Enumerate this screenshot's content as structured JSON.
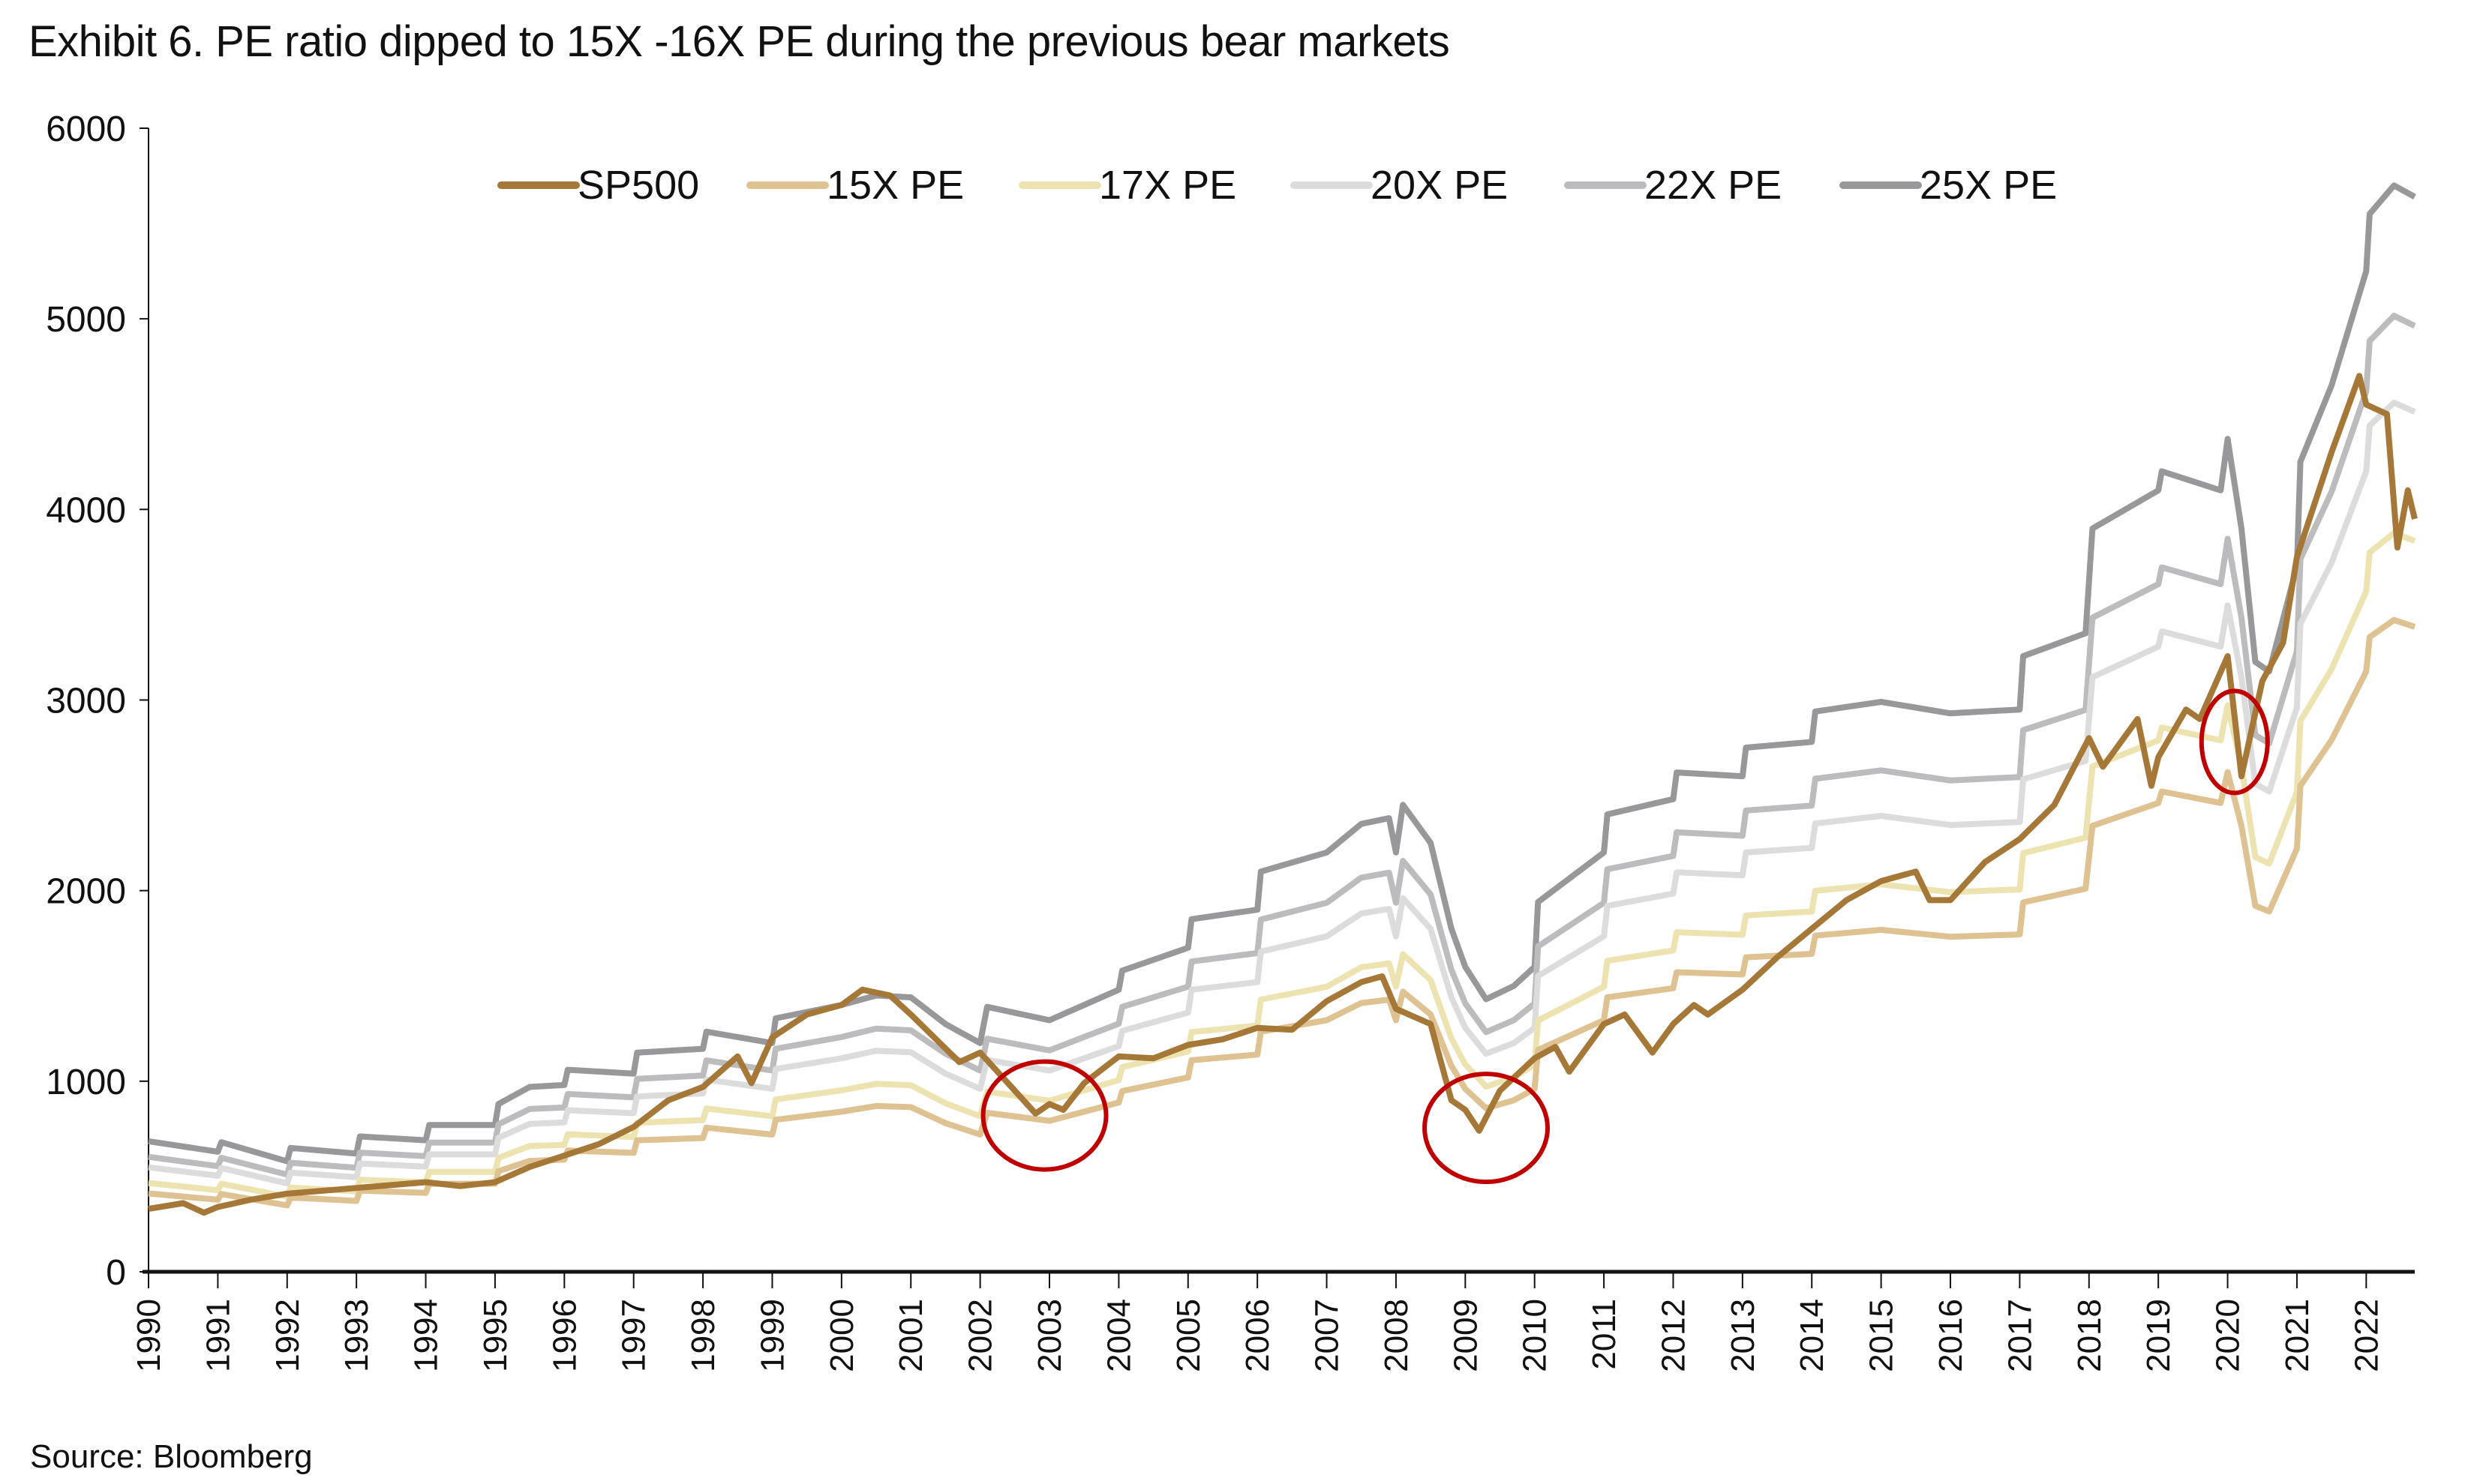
{
  "title": "Exhibit 6. PE ratio dipped to 15X -16X PE during the previous bear markets",
  "source": "Source: Bloomberg",
  "chart_data": {
    "type": "line",
    "title": "Exhibit 6. PE ratio dipped to 15X -16X PE during the previous bear markets",
    "xlabel": "",
    "ylabel": "",
    "xlim": [
      1990,
      2022.7
    ],
    "ylim": [
      0,
      6000
    ],
    "yticks": [
      0,
      1000,
      2000,
      3000,
      4000,
      5000,
      6000
    ],
    "xticks": [
      "1990",
      "1991",
      "1992",
      "1993",
      "1994",
      "1995",
      "1996",
      "1997",
      "1998",
      "1999",
      "2000",
      "2001",
      "2002",
      "2003",
      "2004",
      "2005",
      "2006",
      "2007",
      "2008",
      "2009",
      "2010",
      "2011",
      "2012",
      "2013",
      "2014",
      "2015",
      "2016",
      "2017",
      "2018",
      "2019",
      "2020",
      "2021",
      "2022"
    ],
    "grid": false,
    "legend_position": "top",
    "series": [
      {
        "name": "SP500",
        "color": "#a57838",
        "x": [
          1990.0,
          1990.5,
          1990.8,
          1991.0,
          1991.5,
          1992.0,
          1993.0,
          1994.0,
          1994.5,
          1995.0,
          1995.5,
          1996.0,
          1996.5,
          1997.0,
          1997.5,
          1998.0,
          1998.5,
          1998.7,
          1999.0,
          1999.5,
          2000.0,
          2000.3,
          2000.7,
          2001.0,
          2001.7,
          2002.0,
          2002.5,
          2002.8,
          2003.0,
          2003.2,
          2003.5,
          2004.0,
          2004.5,
          2005.0,
          2005.5,
          2006.0,
          2006.5,
          2007.0,
          2007.5,
          2007.8,
          2008.0,
          2008.5,
          2008.8,
          2009.0,
          2009.2,
          2009.5,
          2010.0,
          2010.3,
          2010.5,
          2011.0,
          2011.3,
          2011.7,
          2012.0,
          2012.3,
          2012.5,
          2013.0,
          2013.5,
          2014.0,
          2014.5,
          2015.0,
          2015.5,
          2015.7,
          2016.0,
          2016.5,
          2017.0,
          2017.5,
          2018.0,
          2018.2,
          2018.7,
          2018.9,
          2019.0,
          2019.4,
          2019.6,
          2020.0,
          2020.2,
          2020.5,
          2020.8,
          2021.0,
          2021.5,
          2021.9,
          2022.0,
          2022.3,
          2022.45,
          2022.6,
          2022.7
        ],
        "values": [
          330,
          360,
          310,
          340,
          380,
          410,
          440,
          470,
          450,
          470,
          550,
          610,
          670,
          760,
          900,
          970,
          1130,
          990,
          1230,
          1350,
          1400,
          1480,
          1450,
          1350,
          1100,
          1150,
          950,
          830,
          880,
          850,
          990,
          1130,
          1120,
          1190,
          1220,
          1280,
          1270,
          1420,
          1520,
          1550,
          1380,
          1300,
          900,
          850,
          740,
          950,
          1120,
          1180,
          1050,
          1300,
          1350,
          1150,
          1300,
          1400,
          1350,
          1480,
          1650,
          1800,
          1950,
          2050,
          2100,
          1950,
          1950,
          2150,
          2270,
          2450,
          2800,
          2650,
          2900,
          2550,
          2700,
          2950,
          2900,
          3230,
          2600,
          3100,
          3300,
          3750,
          4300,
          4700,
          4550,
          4500,
          3800,
          4100,
          3950
        ]
      },
      {
        "name": "15X PE",
        "color": "#dfc292",
        "values": [
          411,
          378,
          408,
          348,
          390,
          372,
          426,
          414,
          462,
          462,
          528,
          582,
          588,
          636,
          624,
          690,
          702,
          756,
          720,
          798,
          840,
          870,
          864,
          780,
          720,
          834,
          792,
          840,
          888,
          948,
          1020,
          1110,
          1140,
          1260,
          1320,
          1410,
          1428,
          1320,
          1470,
          1350,
          1080,
          960,
          858,
          900,
          960,
          1164,
          1320,
          1440,
          1488,
          1572,
          1560,
          1650,
          1668,
          1764,
          1794,
          1758,
          1770,
          1938,
          2010,
          2340,
          2460,
          2520,
          2460,
          2622,
          2340,
          1920,
          1890,
          2220,
          2550,
          2790,
          3150,
          3330,
          3420,
          3384
        ]
      },
      {
        "name": "17X PE",
        "color": "#ede3b0",
        "values": [
          466,
          428,
          462,
          394,
          442,
          422,
          483,
          469,
          524,
          524,
          598,
          660,
          666,
          721,
          707,
          782,
          796,
          857,
          816,
          904,
          952,
          986,
          979,
          884,
          816,
          945,
          898,
          952,
          1006,
          1074,
          1156,
          1258,
          1292,
          1428,
          1496,
          1598,
          1618,
          1496,
          1666,
          1530,
          1224,
          1088,
          972,
          1020,
          1088,
          1319,
          1496,
          1632,
          1686,
          1782,
          1768,
          1870,
          1890,
          1999,
          2033,
          1992,
          2006,
          2196,
          2278,
          2652,
          2788,
          2856,
          2788,
          2972,
          2652,
          2176,
          2142,
          2516,
          2890,
          3162,
          3570,
          3774,
          3876,
          3835
        ]
      },
      {
        "name": "20X PE",
        "color": "#dcdcdc",
        "values": [
          548,
          504,
          544,
          464,
          520,
          496,
          568,
          552,
          616,
          616,
          704,
          776,
          784,
          848,
          832,
          920,
          936,
          1008,
          960,
          1064,
          1120,
          1160,
          1152,
          1040,
          960,
          1112,
          1056,
          1120,
          1184,
          1264,
          1360,
          1480,
          1520,
          1680,
          1760,
          1880,
          1904,
          1760,
          1960,
          1800,
          1440,
          1280,
          1144,
          1200,
          1280,
          1552,
          1760,
          1920,
          1984,
          2096,
          2080,
          2200,
          2224,
          2352,
          2392,
          2344,
          2360,
          2584,
          2680,
          3120,
          3280,
          3360,
          3280,
          3496,
          3120,
          2560,
          2520,
          2960,
          3400,
          3720,
          4200,
          4440,
          4560,
          4512
        ]
      },
      {
        "name": "22X PE",
        "color": "#bcbcbe",
        "values": [
          603,
          554,
          598,
          510,
          572,
          546,
          625,
          607,
          678,
          678,
          774,
          854,
          862,
          933,
          915,
          1012,
          1030,
          1109,
          1056,
          1170,
          1232,
          1276,
          1267,
          1144,
          1056,
          1223,
          1162,
          1232,
          1302,
          1390,
          1496,
          1628,
          1672,
          1848,
          1936,
          2068,
          2094,
          1936,
          2156,
          1980,
          1584,
          1408,
          1258,
          1320,
          1408,
          1707,
          1936,
          2112,
          2182,
          2306,
          2288,
          2420,
          2446,
          2587,
          2631,
          2578,
          2596,
          2842,
          2948,
          3432,
          3608,
          3696,
          3608,
          3846,
          3432,
          2816,
          2772,
          3256,
          3740,
          4092,
          4620,
          4884,
          5016,
          4963
        ]
      },
      {
        "name": "25X PE",
        "color": "#98989a",
        "values": [
          685,
          630,
          680,
          580,
          650,
          620,
          710,
          690,
          770,
          770,
          880,
          970,
          980,
          1060,
          1040,
          1150,
          1170,
          1260,
          1200,
          1330,
          1400,
          1450,
          1440,
          1300,
          1200,
          1390,
          1320,
          1400,
          1480,
          1580,
          1700,
          1850,
          1900,
          2100,
          2200,
          2350,
          2380,
          2200,
          2450,
          2250,
          1800,
          1600,
          1430,
          1500,
          1600,
          1940,
          2200,
          2400,
          2480,
          2620,
          2600,
          2750,
          2780,
          2940,
          2990,
          2930,
          2950,
          3230,
          3350,
          3900,
          4100,
          4200,
          4100,
          4370,
          3900,
          3200,
          3150,
          3700,
          4250,
          4650,
          5250,
          5550,
          5700,
          5640
        ]
      }
    ],
    "pe_x": [
      1990.0,
      1991.0,
      1991.05,
      1992.0,
      1992.05,
      1993.0,
      1993.05,
      1994.0,
      1994.05,
      1995.0,
      1995.05,
      1995.5,
      1996.0,
      1996.05,
      1997.0,
      1997.05,
      1998.0,
      1998.05,
      1999.0,
      1999.05,
      2000.0,
      2000.5,
      2001.0,
      2001.5,
      2002.0,
      2002.1,
      2003.0,
      2003.5,
      2004.0,
      2004.05,
      2005.0,
      2005.05,
      2006.0,
      2006.05,
      2007.0,
      2007.5,
      2007.9,
      2008.0,
      2008.1,
      2008.5,
      2008.8,
      2009.0,
      2009.3,
      2009.7,
      2010.0,
      2010.05,
      2011.0,
      2011.05,
      2012.0,
      2012.05,
      2013.0,
      2013.05,
      2014.0,
      2014.05,
      2015.0,
      2016.0,
      2017.0,
      2017.05,
      2017.95,
      2018.05,
      2019.0,
      2019.05,
      2019.9,
      2020.0,
      2020.2,
      2020.4,
      2020.6,
      2021.0,
      2021.05,
      2021.5,
      2022.0,
      2022.05,
      2022.4,
      2022.7
    ],
    "annotations": [
      {
        "type": "circle",
        "color": "#c00000",
        "x": 2002.93,
        "y": 820
      },
      {
        "type": "circle",
        "color": "#c00000",
        "x": 2009.3,
        "y": 755
      },
      {
        "type": "circle",
        "color": "#c00000",
        "x": 2020.1,
        "y": 2780
      }
    ]
  }
}
